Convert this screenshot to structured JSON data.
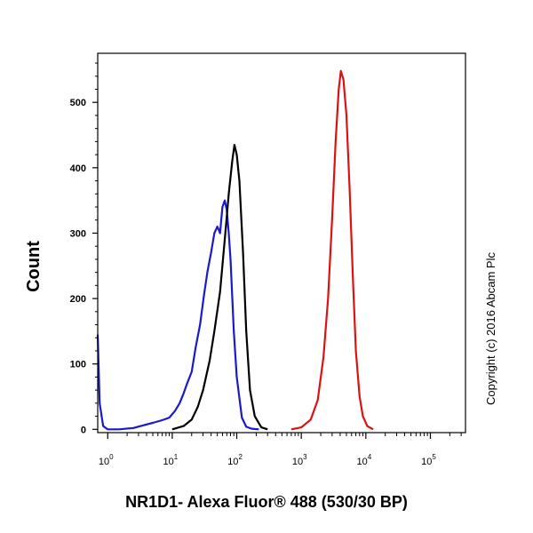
{
  "chart_data": {
    "type": "line",
    "title": "",
    "xlabel": "NR1D1- Alexa Fluor® 488 (530/30 BP)",
    "ylabel": "Count",
    "xscale": "log",
    "xlim": [
      0.7,
      350000
    ],
    "ylim": [
      -5,
      575
    ],
    "x_ticks": [
      {
        "value": 1,
        "base": "10",
        "exp": "0"
      },
      {
        "value": 10,
        "base": "10",
        "exp": "1"
      },
      {
        "value": 100,
        "base": "10",
        "exp": "2"
      },
      {
        "value": 1000,
        "base": "10",
        "exp": "3"
      },
      {
        "value": 10000,
        "base": "10",
        "exp": "4"
      },
      {
        "value": 100000,
        "base": "10",
        "exp": "5"
      }
    ],
    "y_ticks": [
      0,
      100,
      200,
      300,
      400,
      500
    ],
    "grid": false,
    "legend": "none",
    "series": [
      {
        "color": "#1a1acc",
        "x": [
          0.7,
          0.75,
          0.85,
          1.0,
          1.5,
          2.5,
          3.5,
          5,
          7,
          9,
          11,
          13,
          15,
          17,
          20,
          23,
          27,
          31,
          35,
          40,
          45,
          50,
          55,
          60,
          65,
          70,
          75,
          80,
          90,
          100,
          120,
          140,
          170,
          220
        ],
        "y": [
          145,
          40,
          5,
          0,
          0,
          2,
          6,
          10,
          14,
          18,
          28,
          40,
          55,
          70,
          88,
          125,
          160,
          205,
          240,
          270,
          300,
          310,
          300,
          340,
          350,
          335,
          300,
          260,
          150,
          80,
          18,
          4,
          1,
          0
        ]
      },
      {
        "color": "#000000",
        "x": [
          10,
          15,
          20,
          25,
          30,
          38,
          45,
          55,
          65,
          75,
          85,
          92,
          100,
          110,
          125,
          140,
          160,
          190,
          240,
          300
        ],
        "y": [
          0,
          5,
          15,
          35,
          60,
          105,
          150,
          210,
          290,
          360,
          410,
          435,
          420,
          380,
          270,
          150,
          60,
          20,
          3,
          0
        ]
      },
      {
        "color": "#dd1111",
        "x": [
          700,
          1000,
          1400,
          1800,
          2200,
          2600,
          3000,
          3400,
          3800,
          4100,
          4500,
          5000,
          5600,
          6300,
          7000,
          8000,
          9000,
          10500,
          13000
        ],
        "y": [
          0,
          3,
          15,
          45,
          110,
          200,
          320,
          440,
          520,
          548,
          535,
          480,
          370,
          230,
          120,
          50,
          20,
          5,
          0
        ]
      }
    ]
  },
  "copyright": "Copyright (c) 2016 Abcam Plc"
}
